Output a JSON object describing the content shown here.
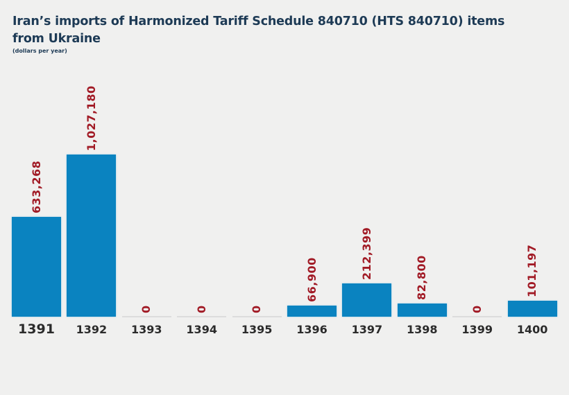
{
  "title": "Iran’s imports of Harmonized Tariff Schedule 840710 (HTS 840710) items from Ukraine",
  "subtitle": "(dollars per year)",
  "colors": {
    "bar": "#0a83c0",
    "value_label": "#a11a25",
    "title": "#1d3a55"
  },
  "chart_data": {
    "type": "bar",
    "title": "Iran’s imports of Harmonized Tariff Schedule 840710 (HTS 840710) items from Ukraine",
    "subtitle": "(dollars per year)",
    "xlabel": "",
    "ylabel": "dollars per year",
    "categories": [
      "1391",
      "1392",
      "1393",
      "1394",
      "1395",
      "1396",
      "1397",
      "1398",
      "1399",
      "1400"
    ],
    "values": [
      633268,
      1027180,
      0,
      0,
      0,
      66900,
      212399,
      82800,
      0,
      101197
    ],
    "value_labels": [
      "633,268",
      "1,027,180",
      "0",
      "0",
      "0",
      "66,900",
      "212,399",
      "82,800",
      "0",
      "101,197"
    ],
    "grid": false,
    "legend": null
  }
}
